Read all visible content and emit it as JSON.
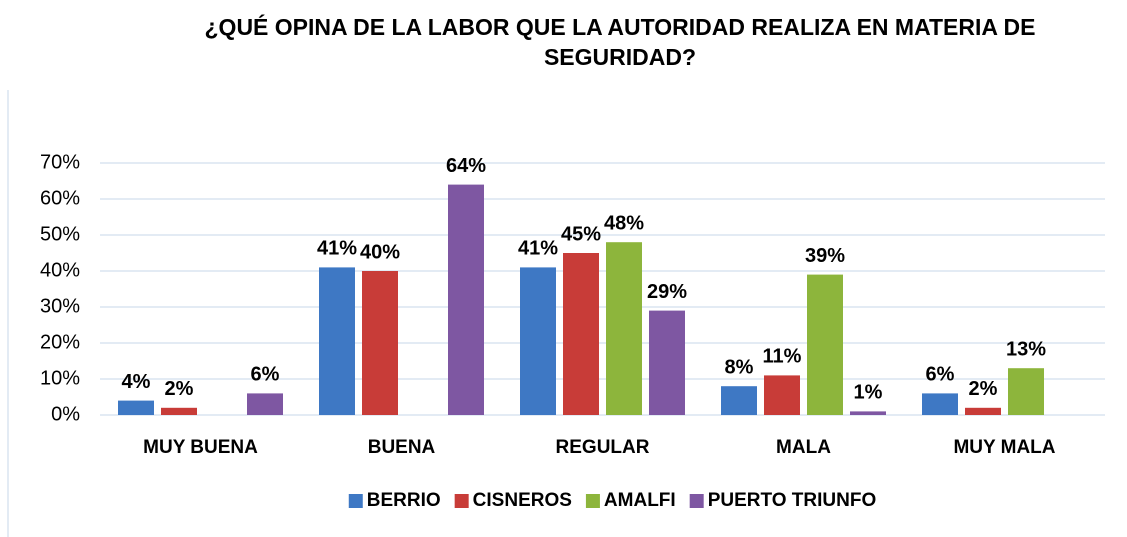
{
  "chart_data": {
    "type": "bar",
    "title": "¿QUÉ OPINA DE LA LABOR QUE LA AUTORIDAD REALIZA EN MATERIA DE SEGURIDAD?",
    "categories": [
      "MUY BUENA",
      "BUENA",
      "REGULAR",
      "MALA",
      "MUY MALA"
    ],
    "series": [
      {
        "name": "BERRIO",
        "color": "#3e78c4",
        "values": [
          4,
          41,
          41,
          8,
          6
        ],
        "value_labels": [
          "4%",
          "41%",
          "41%",
          "8%",
          "6%"
        ]
      },
      {
        "name": "CISNEROS",
        "color": "#c83c38",
        "values": [
          2,
          40,
          45,
          11,
          2
        ],
        "value_labels": [
          "2%",
          "40%",
          "45%",
          "11%",
          "2%"
        ]
      },
      {
        "name": "AMALFI",
        "color": "#8db53c",
        "values": [
          null,
          null,
          48,
          39,
          13
        ],
        "value_labels": [
          null,
          null,
          "48%",
          "39%",
          "13%"
        ]
      },
      {
        "name": "PUERTO TRIUNFO",
        "color": "#7e57a2",
        "values": [
          6,
          64,
          29,
          1,
          null
        ],
        "value_labels": [
          "6%",
          "64%",
          "29%",
          "1%",
          null
        ]
      }
    ],
    "ylim": [
      0,
      70
    ],
    "yticks": [
      {
        "value": 0,
        "label": "0%"
      },
      {
        "value": 10,
        "label": "10%"
      },
      {
        "value": 20,
        "label": "20%"
      },
      {
        "value": 30,
        "label": "30%"
      },
      {
        "value": 40,
        "label": "40%"
      },
      {
        "value": 50,
        "label": "50%"
      },
      {
        "value": 60,
        "label": "60%"
      },
      {
        "value": 70,
        "label": "70%"
      }
    ],
    "grid": true,
    "legend": "bottom"
  }
}
